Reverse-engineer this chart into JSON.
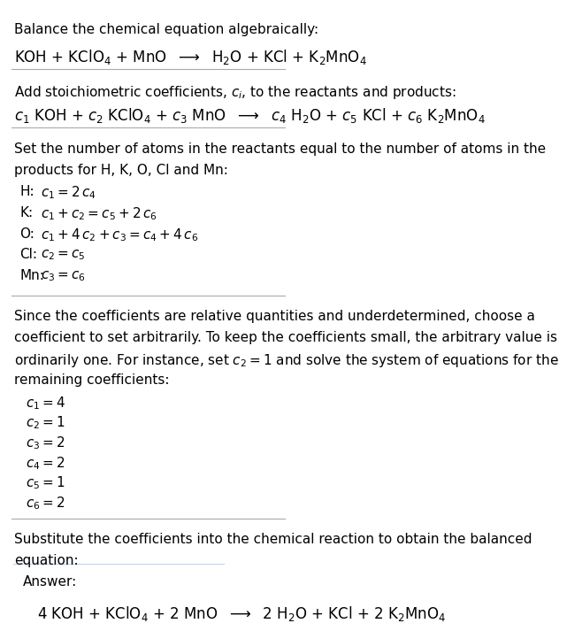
{
  "title_line": "Balance the chemical equation algebraically:",
  "equation_line": "KOH + KClO$_4$ + MnO  $\\longrightarrow$  H$_2$O + KCl + K$_2$MnO$_4$",
  "section2_intro": "Add stoichiometric coefficients, $c_i$, to the reactants and products:",
  "section2_eq": "$c_1$ KOH + $c_2$ KClO$_4$ + $c_3$ MnO  $\\longrightarrow$  $c_4$ H$_2$O + $c_5$ KCl + $c_6$ K$_2$MnO$_4$",
  "section3_intro1": "Set the number of atoms in the reactants equal to the number of atoms in the",
  "section3_intro2": "products for H, K, O, Cl and Mn:",
  "equations": [
    [
      "H:",
      "$c_1 = 2\\,c_4$"
    ],
    [
      "K:",
      "$c_1 + c_2 = c_5 + 2\\,c_6$"
    ],
    [
      "O:",
      "$c_1 + 4\\,c_2 + c_3 = c_4 + 4\\,c_6$"
    ],
    [
      "Cl:",
      "$c_2 = c_5$"
    ],
    [
      "Mn:",
      "$c_3 = c_6$"
    ]
  ],
  "section4_text1": "Since the coefficients are relative quantities and underdetermined, choose a",
  "section4_text2": "coefficient to set arbitrarily. To keep the coefficients small, the arbitrary value is",
  "section4_text3": "ordinarily one. For instance, set $c_2 = 1$ and solve the system of equations for the",
  "section4_text4": "remaining coefficients:",
  "coeff_lines": [
    "$c_1 = 4$",
    "$c_2 = 1$",
    "$c_3 = 2$",
    "$c_4 = 2$",
    "$c_5 = 1$",
    "$c_6 = 2$"
  ],
  "section5_text1": "Substitute the coefficients into the chemical reaction to obtain the balanced",
  "section5_text2": "equation:",
  "answer_label": "Answer:",
  "answer_eq": "4 KOH + KClO$_4$ + 2 MnO  $\\longrightarrow$  2 H$_2$O + KCl + 2 K$_2$MnO$_4$",
  "bg_color": "#ffffff",
  "answer_box_color": "#ddeeff",
  "answer_box_edge": "#aaccee",
  "text_color": "#000000",
  "font_size": 11,
  "small_font": 10
}
